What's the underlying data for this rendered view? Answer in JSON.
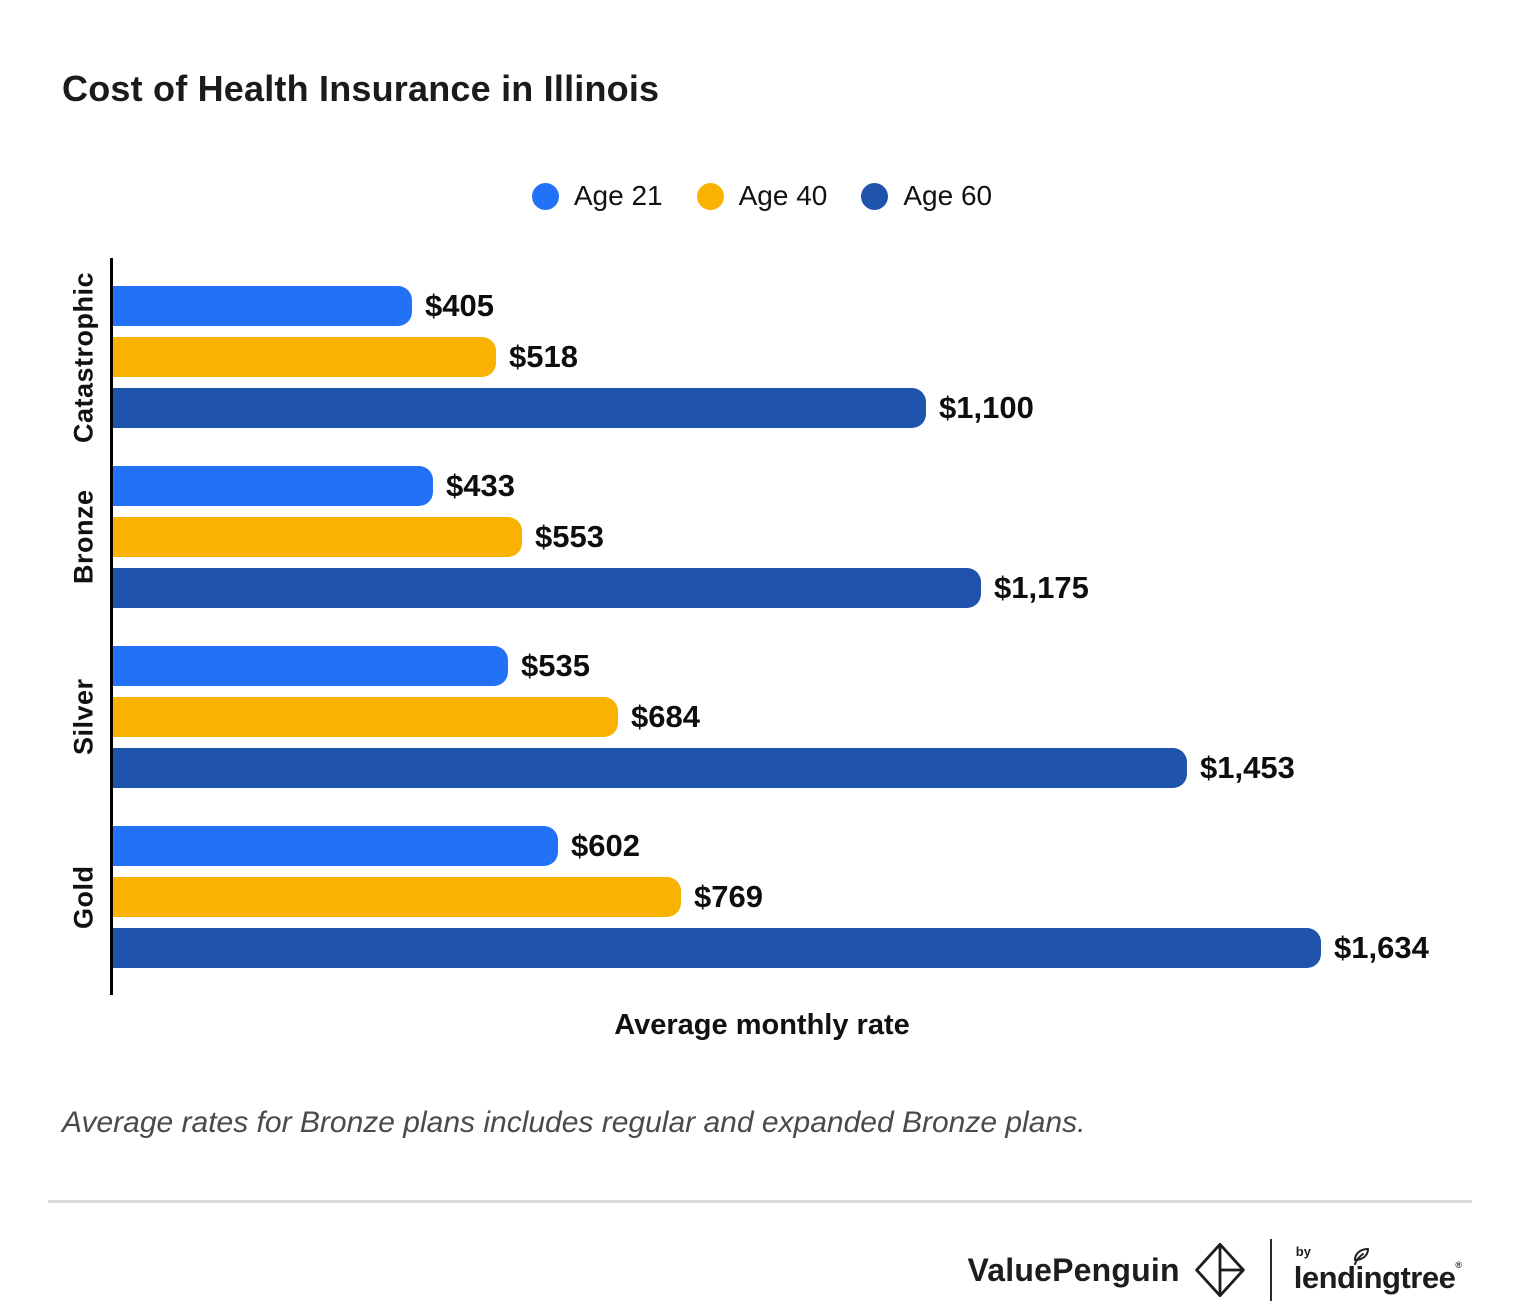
{
  "title": "Cost of Health Insurance in Illinois",
  "legend": [
    {
      "label": "Age 21",
      "color": "#2272F7"
    },
    {
      "label": "Age 40",
      "color": "#F9B200"
    },
    {
      "label": "Age 60",
      "color": "#2053AB"
    }
  ],
  "footnote": "Average rates for Bronze plans includes regular and expanded Bronze plans.",
  "branding": {
    "valuepenguin": "ValuePenguin",
    "by": "by",
    "lendingtree": "lendingtree",
    "trademark": "®"
  },
  "colors": {
    "age21": "#2272F7",
    "age40": "#F9B200",
    "age60": "#2053AB",
    "axis": "#000000",
    "value_label": "#0e0e0e",
    "footnote_text": "#4a4a4a",
    "divider": "#dbdbdb"
  },
  "chart_data": {
    "type": "bar",
    "orientation": "horizontal",
    "title": "Cost of Health Insurance in Illinois",
    "categories": [
      "Catastrophic",
      "Bronze",
      "Silver",
      "Gold"
    ],
    "series": [
      {
        "name": "Age 21",
        "color": "#2272F7",
        "values": [
          405,
          433,
          535,
          602
        ],
        "labels": [
          "$405",
          "$433",
          "$535",
          "$602"
        ]
      },
      {
        "name": "Age 40",
        "color": "#F9B200",
        "values": [
          518,
          553,
          684,
          769
        ],
        "labels": [
          "$518",
          "$553",
          "$684",
          "$769"
        ]
      },
      {
        "name": "Age 60",
        "color": "#2053AB",
        "values": [
          1100,
          1175,
          1453,
          1634
        ],
        "labels": [
          "$1,100",
          "$1,175",
          "$1,453",
          "$1,634"
        ]
      }
    ],
    "xlabel": "Average monthly rate",
    "ylabel": "",
    "xlim": [
      0,
      1825
    ],
    "grid": false,
    "legend_position": "top-center",
    "value_labels_shown": true,
    "bar_corner": "rounded-right"
  }
}
